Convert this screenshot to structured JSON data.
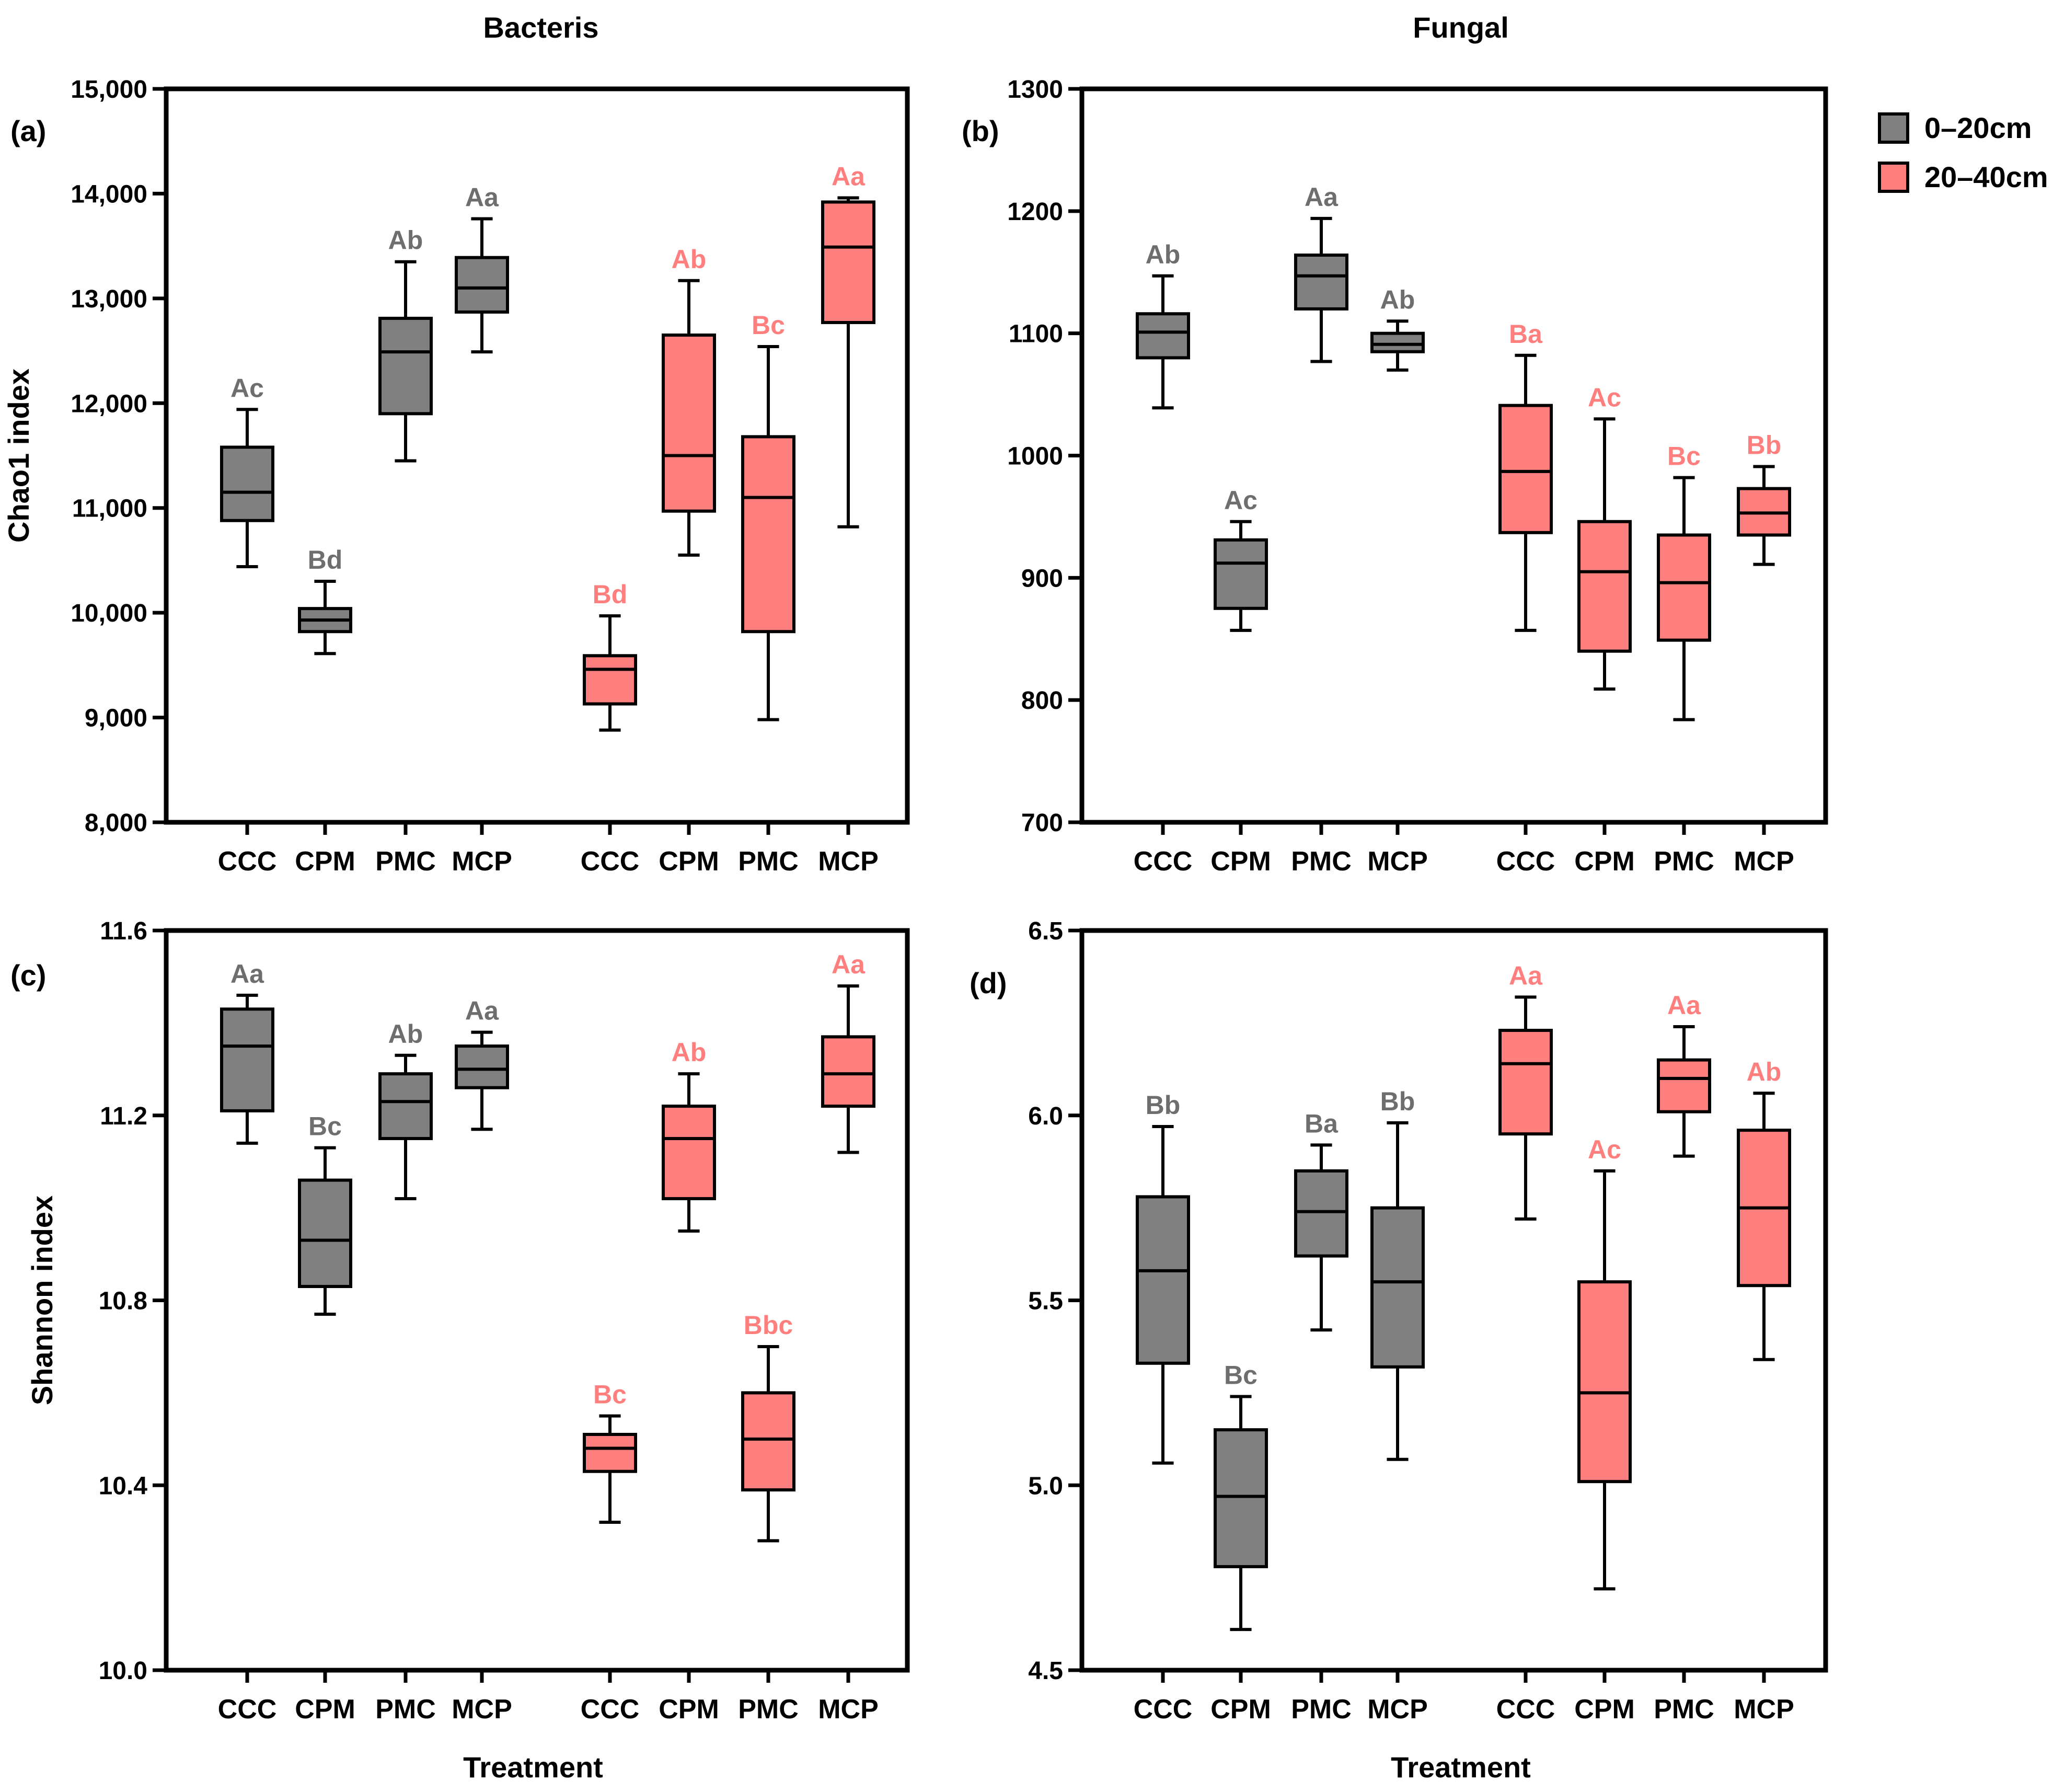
{
  "figure": {
    "column_titles": [
      "Bacteris",
      "Fungal"
    ],
    "xlabel": "Treatment",
    "legend": [
      {
        "label": "0–20cm",
        "color": "#808080"
      },
      {
        "label": "20–40cm",
        "color": "#FF7F7F"
      }
    ],
    "letter_colors": {
      "0–20cm": "#6E6E6E",
      "20–40cm": "#FF7F7F"
    }
  },
  "chart_data": [
    {
      "type": "boxplot",
      "panel": "(a)",
      "column_title": "Bacteris",
      "ylabel": "Chao1 index",
      "ylim": [
        8000,
        15000
      ],
      "yticks": [
        8000,
        9000,
        10000,
        11000,
        12000,
        13000,
        14000,
        15000
      ],
      "ytick_labels": [
        "8,000",
        "9,000",
        "10,000",
        "11,000",
        "12,000",
        "13,000",
        "14,000",
        "15,000"
      ],
      "categories": [
        "CCC",
        "CPM",
        "PMC",
        "MCP",
        "CCC",
        "CPM",
        "PMC",
        "MCP"
      ],
      "series": [
        {
          "name": "0–20cm",
          "positions": [
            0,
            1,
            2,
            3
          ],
          "boxes": [
            {
              "min": 10440,
              "q1": 10880,
              "median": 11150,
              "q3": 11580,
              "max": 11940,
              "letter": "Ac"
            },
            {
              "min": 9610,
              "q1": 9820,
              "median": 9930,
              "q3": 10040,
              "max": 10300,
              "letter": "Bd"
            },
            {
              "min": 11450,
              "q1": 11900,
              "median": 12490,
              "q3": 12810,
              "max": 13350,
              "letter": "Ab"
            },
            {
              "min": 12490,
              "q1": 12870,
              "median": 13100,
              "q3": 13390,
              "max": 13760,
              "letter": "Aa"
            }
          ]
        },
        {
          "name": "20–40cm",
          "positions": [
            4,
            5,
            6,
            7
          ],
          "boxes": [
            {
              "min": 8880,
              "q1": 9130,
              "median": 9460,
              "q3": 9590,
              "max": 9970,
              "letter": "Bd"
            },
            {
              "min": 10550,
              "q1": 10970,
              "median": 11500,
              "q3": 12650,
              "max": 13170,
              "letter": "Ab"
            },
            {
              "min": 8980,
              "q1": 9820,
              "median": 11100,
              "q3": 11680,
              "max": 12540,
              "letter": "Bc"
            },
            {
              "min": 10820,
              "q1": 12770,
              "median": 13490,
              "q3": 13920,
              "max": 13960,
              "letter": "Aa"
            }
          ]
        }
      ]
    },
    {
      "type": "boxplot",
      "panel": "(b)",
      "column_title": "Fungal",
      "ylabel": "",
      "ylim": [
        700,
        1300
      ],
      "yticks": [
        700,
        800,
        900,
        1000,
        1100,
        1200,
        1300
      ],
      "ytick_labels": [
        "700",
        "800",
        "900",
        "1000",
        "1100",
        "1200",
        "1300"
      ],
      "categories": [
        "CCC",
        "CPM",
        "PMC",
        "MCP",
        "CCC",
        "CPM",
        "PMC",
        "MCP"
      ],
      "series": [
        {
          "name": "0–20cm",
          "positions": [
            0,
            1,
            2,
            3
          ],
          "boxes": [
            {
              "min": 1039,
              "q1": 1080,
              "median": 1101,
              "q3": 1116,
              "max": 1147,
              "letter": "Ab"
            },
            {
              "min": 857,
              "q1": 875,
              "median": 912,
              "q3": 931,
              "max": 946,
              "letter": "Ac"
            },
            {
              "min": 1077,
              "q1": 1120,
              "median": 1147,
              "q3": 1164,
              "max": 1194,
              "letter": "Aa"
            },
            {
              "min": 1070,
              "q1": 1085,
              "median": 1091,
              "q3": 1100,
              "max": 1110,
              "letter": "Ab"
            }
          ]
        },
        {
          "name": "20–40cm",
          "positions": [
            4,
            5,
            6,
            7
          ],
          "boxes": [
            {
              "min": 857,
              "q1": 937,
              "median": 987,
              "q3": 1041,
              "max": 1082,
              "letter": "Ba"
            },
            {
              "min": 809,
              "q1": 840,
              "median": 905,
              "q3": 946,
              "max": 1030,
              "letter": "Ac"
            },
            {
              "min": 784,
              "q1": 849,
              "median": 896,
              "q3": 935,
              "max": 982,
              "letter": "Bc"
            },
            {
              "min": 911,
              "q1": 935,
              "median": 953,
              "q3": 973,
              "max": 991,
              "letter": "Bb"
            }
          ]
        }
      ]
    },
    {
      "type": "boxplot",
      "panel": "(c)",
      "column_title": "",
      "ylabel": "Shannon index",
      "ylim": [
        10.0,
        11.6
      ],
      "yticks": [
        10.0,
        10.4,
        10.8,
        11.2,
        11.6
      ],
      "ytick_labels": [
        "10.0",
        "10.4",
        "10.8",
        "11.2",
        "11.6"
      ],
      "categories": [
        "CCC",
        "CPM",
        "PMC",
        "MCP",
        "CCC",
        "CPM",
        "PMC",
        "MCP"
      ],
      "series": [
        {
          "name": "0–20cm",
          "positions": [
            0,
            1,
            2,
            3
          ],
          "boxes": [
            {
              "min": 11.14,
              "q1": 11.21,
              "median": 11.35,
              "q3": 11.43,
              "max": 11.46,
              "letter": "Aa"
            },
            {
              "min": 10.77,
              "q1": 10.83,
              "median": 10.93,
              "q3": 11.06,
              "max": 11.13,
              "letter": "Bc"
            },
            {
              "min": 11.02,
              "q1": 11.15,
              "median": 11.23,
              "q3": 11.29,
              "max": 11.33,
              "letter": "Ab"
            },
            {
              "min": 11.17,
              "q1": 11.26,
              "median": 11.3,
              "q3": 11.35,
              "max": 11.38,
              "letter": "Aa"
            }
          ]
        },
        {
          "name": "20–40cm",
          "positions": [
            4,
            5,
            6,
            7
          ],
          "boxes": [
            {
              "min": 10.32,
              "q1": 10.43,
              "median": 10.48,
              "q3": 10.51,
              "max": 10.55,
              "letter": "Bc"
            },
            {
              "min": 10.95,
              "q1": 11.02,
              "median": 11.15,
              "q3": 11.22,
              "max": 11.29,
              "letter": "Ab"
            },
            {
              "min": 10.28,
              "q1": 10.39,
              "median": 10.5,
              "q3": 10.6,
              "max": 10.7,
              "letter": "Bbc"
            },
            {
              "min": 11.12,
              "q1": 11.22,
              "median": 11.29,
              "q3": 11.37,
              "max": 11.48,
              "letter": "Aa"
            }
          ]
        }
      ]
    },
    {
      "type": "boxplot",
      "panel": "(d)",
      "column_title": "",
      "ylabel": "",
      "ylim": [
        4.5,
        6.5
      ],
      "yticks": [
        4.5,
        5.0,
        5.5,
        6.0,
        6.5
      ],
      "ytick_labels": [
        "4.5",
        "5.0",
        "5.5",
        "6.0",
        "6.5"
      ],
      "categories": [
        "CCC",
        "CPM",
        "PMC",
        "MCP",
        "CCC",
        "CPM",
        "PMC",
        "MCP"
      ],
      "series": [
        {
          "name": "0–20cm",
          "positions": [
            0,
            1,
            2,
            3
          ],
          "boxes": [
            {
              "min": 5.06,
              "q1": 5.33,
              "median": 5.58,
              "q3": 5.78,
              "max": 5.97,
              "letter": "Bb"
            },
            {
              "min": 4.61,
              "q1": 4.78,
              "median": 4.97,
              "q3": 5.15,
              "max": 5.24,
              "letter": "Bc"
            },
            {
              "min": 5.42,
              "q1": 5.62,
              "median": 5.74,
              "q3": 5.85,
              "max": 5.92,
              "letter": "Ba"
            },
            {
              "min": 5.07,
              "q1": 5.32,
              "median": 5.55,
              "q3": 5.75,
              "max": 5.98,
              "letter": "Bb"
            }
          ]
        },
        {
          "name": "20–40cm",
          "positions": [
            4,
            5,
            6,
            7
          ],
          "boxes": [
            {
              "min": 5.72,
              "q1": 5.95,
              "median": 6.14,
              "q3": 6.23,
              "max": 6.32,
              "letter": "Aa"
            },
            {
              "min": 4.72,
              "q1": 5.01,
              "median": 5.25,
              "q3": 5.55,
              "max": 5.85,
              "letter": "Ac"
            },
            {
              "min": 5.89,
              "q1": 6.01,
              "median": 6.1,
              "q3": 6.15,
              "max": 6.24,
              "letter": "Aa"
            },
            {
              "min": 5.34,
              "q1": 5.54,
              "median": 5.75,
              "q3": 5.96,
              "max": 6.06,
              "letter": "Ab"
            }
          ]
        }
      ]
    }
  ]
}
